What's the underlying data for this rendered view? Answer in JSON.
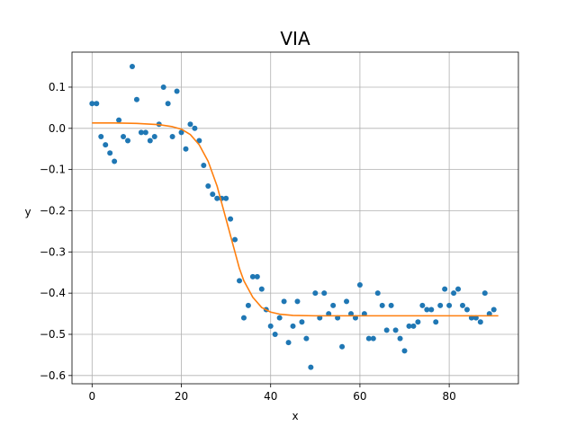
{
  "chart_data": {
    "type": "scatter",
    "title": "VIA",
    "xlabel": "x",
    "ylabel": "y",
    "xlim": [
      -4.5,
      95.5
    ],
    "ylim": [
      -0.62,
      0.185
    ],
    "xticks": [
      0,
      20,
      40,
      60,
      80
    ],
    "xtick_labels": [
      "0",
      "20",
      "40",
      "60",
      "80"
    ],
    "yticks": [
      0.1,
      0.0,
      -0.1,
      -0.2,
      -0.3,
      -0.4,
      -0.5,
      -0.6
    ],
    "ytick_labels": [
      "0.1",
      "0.0",
      "−0.1",
      "−0.2",
      "−0.3",
      "−0.4",
      "−0.5",
      "−0.6"
    ],
    "grid": true,
    "colors": {
      "points": "#1f77b4",
      "fit": "#ff7f0e",
      "grid": "#b0b0b0"
    },
    "series": [
      {
        "kind": "scatter",
        "x": [
          0,
          1,
          2,
          3,
          4,
          5,
          6,
          7,
          8,
          9,
          10,
          11,
          12,
          13,
          14,
          15,
          16,
          17,
          18,
          19,
          20,
          21,
          22,
          23,
          24,
          25,
          26,
          27,
          28,
          29,
          30,
          31,
          32,
          33,
          34,
          35,
          36,
          37,
          38,
          39,
          40,
          41,
          42,
          43,
          44,
          45,
          46,
          47,
          48,
          49,
          50,
          51,
          52,
          53,
          54,
          55,
          56,
          57,
          58,
          59,
          60,
          61,
          62,
          63,
          64,
          65,
          66,
          67,
          68,
          69,
          70,
          71,
          72,
          73,
          74,
          75,
          76,
          77,
          78,
          79,
          80,
          81,
          82,
          83,
          84,
          85,
          86,
          87,
          88,
          89,
          90
        ],
        "y": [
          0.06,
          0.06,
          -0.02,
          -0.04,
          -0.06,
          -0.08,
          0.02,
          -0.02,
          -0.03,
          0.15,
          0.07,
          -0.01,
          -0.01,
          -0.03,
          -0.02,
          0.01,
          0.1,
          0.06,
          -0.02,
          0.09,
          -0.01,
          -0.05,
          0.01,
          0.0,
          -0.03,
          -0.09,
          -0.14,
          -0.16,
          -0.17,
          -0.17,
          -0.17,
          -0.22,
          -0.27,
          -0.37,
          -0.46,
          -0.43,
          -0.36,
          -0.36,
          -0.39,
          -0.44,
          -0.48,
          -0.5,
          -0.46,
          -0.42,
          -0.52,
          -0.48,
          -0.42,
          -0.47,
          -0.51,
          -0.58,
          -0.4,
          -0.46,
          -0.4,
          -0.45,
          -0.43,
          -0.46,
          -0.53,
          -0.42,
          -0.45,
          -0.46,
          -0.38,
          -0.45,
          -0.51,
          -0.51,
          -0.4,
          -0.43,
          -0.49,
          -0.43,
          -0.49,
          -0.51,
          -0.54,
          -0.48,
          -0.48,
          -0.47,
          -0.43,
          -0.44,
          -0.44,
          -0.47,
          -0.43,
          -0.39,
          -0.43,
          -0.4,
          -0.39,
          -0.43,
          -0.44,
          -0.46,
          -0.46,
          -0.47,
          -0.4,
          -0.45,
          -0.44
        ]
      },
      {
        "kind": "line",
        "x": [
          0,
          5,
          10,
          15,
          18,
          20,
          22,
          24,
          26,
          28,
          29,
          30,
          31,
          32,
          33,
          34,
          36,
          38,
          40,
          42,
          45,
          50,
          55,
          60,
          70,
          80,
          91
        ],
        "y": [
          0.013,
          0.013,
          0.012,
          0.009,
          0.004,
          -0.002,
          -0.015,
          -0.04,
          -0.08,
          -0.14,
          -0.18,
          -0.22,
          -0.26,
          -0.3,
          -0.34,
          -0.37,
          -0.41,
          -0.435,
          -0.446,
          -0.451,
          -0.454,
          -0.455,
          -0.455,
          -0.455,
          -0.455,
          -0.455,
          -0.455
        ]
      }
    ]
  }
}
